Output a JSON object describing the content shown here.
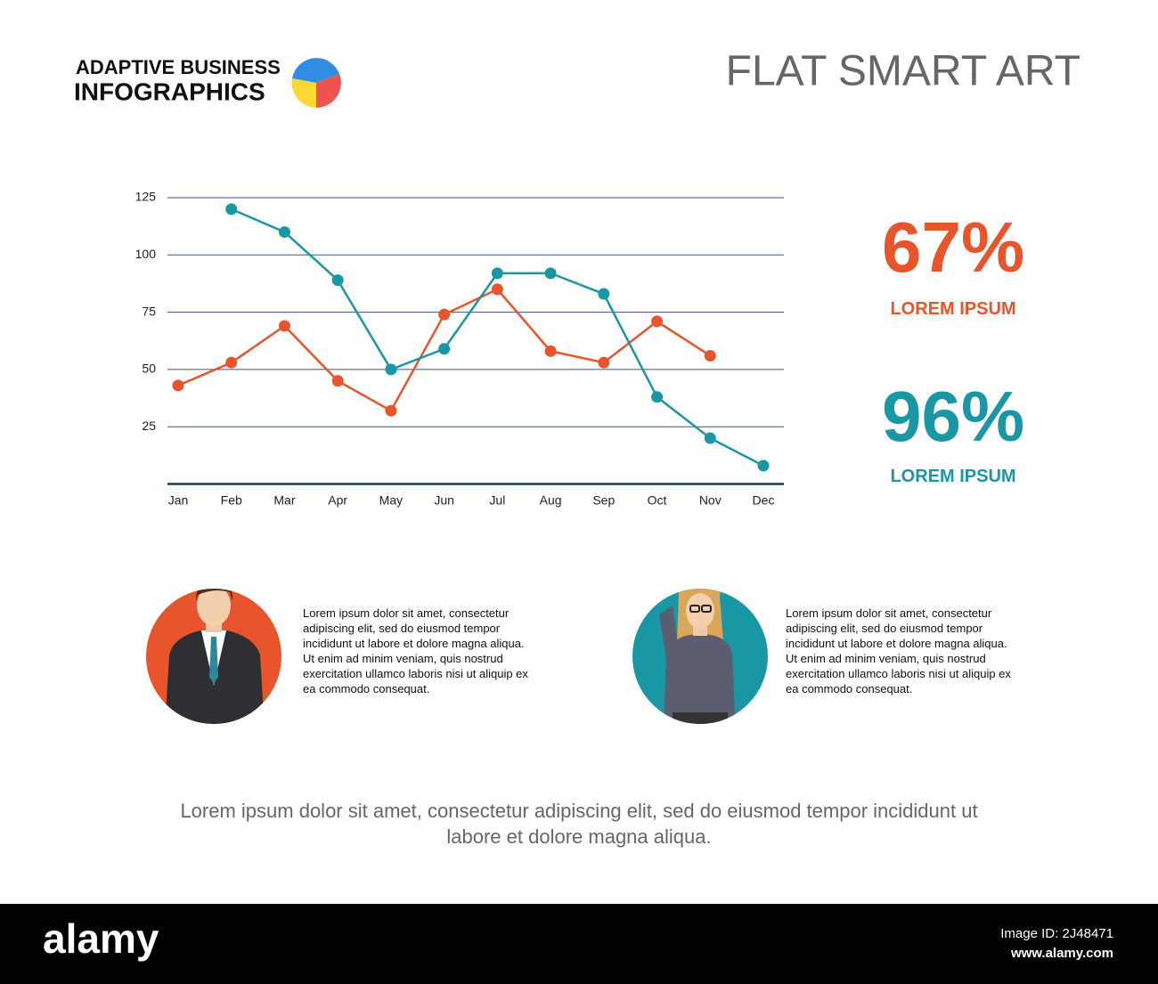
{
  "header": {
    "brand_line1": "ADAPTIVE BUSINESS",
    "brand_line2": "INFOGRAPHICS",
    "title": "FLAT SMART ART"
  },
  "chart_data": {
    "type": "line",
    "categories": [
      "Jan",
      "Feb",
      "Mar",
      "Apr",
      "May",
      "Jun",
      "Jul",
      "Aug",
      "Sep",
      "Oct",
      "Nov",
      "Dec"
    ],
    "series": [
      {
        "color": "#e8542b",
        "values": [
          43,
          53,
          69,
          45,
          32,
          74,
          85,
          58,
          53,
          71,
          56,
          null
        ]
      },
      {
        "color": "#1a97a5",
        "values": [
          null,
          120,
          110,
          89,
          50,
          59,
          92,
          92,
          83,
          38,
          20,
          8
        ]
      }
    ],
    "ylim": [
      0,
      125
    ],
    "yticks": [
      25,
      50,
      75,
      100,
      125
    ],
    "grid": true
  },
  "stats": [
    {
      "value": "67%",
      "label": "LOREM IPSUM",
      "color": "#e8542b"
    },
    {
      "value": "96%",
      "label": "LOREM IPSUM",
      "color": "#1a97a5"
    }
  ],
  "profiles": [
    {
      "text": "Lorem ipsum dolor sit amet, consectetur adipiscing elit, sed do eiusmod tempor incididunt ut labore et dolore magna aliqua. Ut enim ad minim veniam, quis nostrud exercitation ullamco laboris nisi ut aliquip ex ea commodo consequat."
    },
    {
      "text": "Lorem ipsum dolor sit amet, consectetur adipiscing elit, sed do eiusmod tempor incididunt ut labore et dolore magna aliqua. Ut enim ad minim veniam, quis nostrud exercitation ullamco laboris nisi ut aliquip ex ea commodo consequat."
    }
  ],
  "footer": "Lorem ipsum dolor sit amet, consectetur adipiscing elit, sed do eiusmod tempor incididunt ut labore et dolore magna aliqua.",
  "watermark": {
    "brand": "alamy",
    "image_id": "Image ID: 2J48471",
    "site": "www.alamy.com"
  }
}
